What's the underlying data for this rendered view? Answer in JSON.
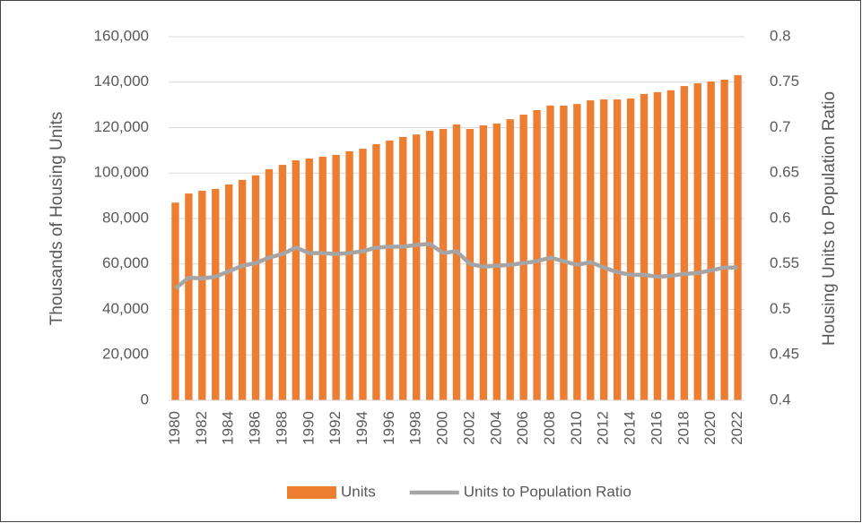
{
  "chart_data": {
    "type": "combo",
    "categories": [
      "1980",
      null,
      "1982",
      null,
      "1984",
      null,
      "1986",
      null,
      "1988",
      null,
      "1990",
      null,
      "1992",
      null,
      "1994",
      null,
      "1996",
      null,
      "1998",
      null,
      "2000",
      null,
      "2002",
      null,
      "2004",
      null,
      "2006",
      null,
      "2008",
      null,
      "2010",
      null,
      "2012",
      null,
      "2014",
      null,
      "2016",
      null,
      "2018",
      null,
      "2020",
      null,
      "2022"
    ],
    "y_label": "Thousands of Housing Units",
    "y2_label": "Housing Units to Population Ratio",
    "series": [
      {
        "name": "Units",
        "type": "bar",
        "color": "#ed7d31",
        "values": [
          87000,
          91000,
          92200,
          93000,
          95000,
          97000,
          99000,
          101700,
          103600,
          105600,
          106400,
          107200,
          108000,
          109600,
          110700,
          112700,
          114300,
          115900,
          117000,
          118600,
          119400,
          121400,
          119400,
          121000,
          121800,
          123700,
          125700,
          127700,
          129700,
          129700,
          130400,
          132000,
          132400,
          132400,
          132800,
          134800,
          135600,
          136400,
          138300,
          139500,
          140300,
          141100,
          143100
        ]
      },
      {
        "name": "Units to Population Ratio",
        "type": "line",
        "axis": "y2",
        "color": "#a5a5a5",
        "values": [
          0.523,
          0.535,
          0.534,
          0.536,
          0.542,
          0.548,
          0.551,
          0.557,
          0.561,
          0.568,
          0.562,
          0.562,
          0.561,
          0.562,
          0.564,
          0.568,
          0.569,
          0.569,
          0.571,
          0.572,
          0.562,
          0.564,
          0.55,
          0.547,
          0.548,
          0.549,
          0.551,
          0.553,
          0.557,
          0.553,
          0.549,
          0.552,
          0.546,
          0.541,
          0.538,
          0.538,
          0.536,
          0.537,
          0.539,
          0.54,
          0.543,
          0.546,
          0.546
        ]
      }
    ],
    "ylim": [
      0,
      160000
    ],
    "yticks": [
      0,
      {
        "value": 20000,
        "label": "20,000"
      },
      {
        "value": 40000,
        "label": "40,000"
      },
      {
        "value": 60000,
        "label": "60,000"
      },
      {
        "value": 80000,
        "label": "80,000"
      },
      {
        "value": 100000,
        "label": "100,000"
      },
      {
        "value": 120000,
        "label": "120,000"
      },
      {
        "value": 140000,
        "label": "140,000"
      },
      {
        "value": 160000,
        "label": "160,000"
      }
    ],
    "y2lim": [
      0.4,
      0.8
    ],
    "y2ticks": [
      0.4,
      0.45,
      0.5,
      0.55,
      0.6,
      0.65,
      0.7,
      0.75,
      0.8
    ],
    "grid": true,
    "legend": "bottom"
  }
}
